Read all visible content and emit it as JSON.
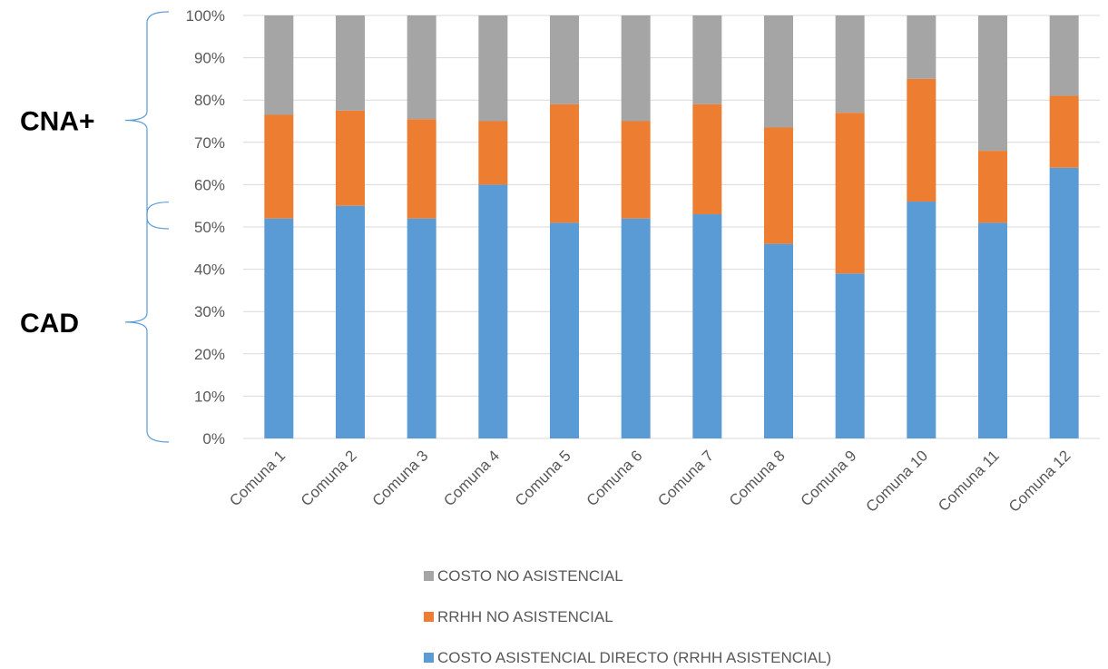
{
  "chart_data": {
    "type": "bar",
    "stacked": true,
    "percent": true,
    "categories": [
      "Comuna 1",
      "Comuna 2",
      "Comuna 3",
      "Comuna 4",
      "Comuna 5",
      "Comuna 6",
      "Comuna 7",
      "Comuna 8",
      "Comuna 9",
      "Comuna 10",
      "Comuna 11",
      "Comuna 12"
    ],
    "series": [
      {
        "name": "COSTO ASISTENCIAL DIRECTO (RRHH ASISTENCIAL)",
        "color": "#5B9BD5",
        "values": [
          52,
          55,
          52,
          60,
          51,
          52,
          53,
          46,
          39,
          56,
          51,
          64
        ]
      },
      {
        "name": "RRHH NO ASISTENCIAL",
        "color": "#ED7D31",
        "values": [
          24.5,
          22.5,
          23.5,
          15,
          28,
          23,
          26,
          27.5,
          38,
          29,
          17,
          17
        ]
      },
      {
        "name": "COSTO NO ASISTENCIAL",
        "color": "#A5A5A5",
        "values": [
          23.5,
          22.5,
          24.5,
          25,
          21,
          25,
          21,
          26.5,
          23,
          15,
          32,
          19
        ]
      }
    ],
    "yticks": [
      "0%",
      "10%",
      "20%",
      "30%",
      "40%",
      "50%",
      "60%",
      "70%",
      "80%",
      "90%",
      "100%"
    ],
    "ylim": [
      0,
      100
    ],
    "grid": true,
    "legend_position": "bottom",
    "legend_order": [
      "COSTO NO ASISTENCIAL",
      "RRHH NO ASISTENCIAL",
      "COSTO ASISTENCIAL DIRECTO (RRHH ASISTENCIAL)"
    ],
    "annotations": [
      {
        "text": "CNA+",
        "range": [
          50,
          100
        ]
      },
      {
        "text": "CAD",
        "range": [
          0,
          55
        ]
      }
    ]
  }
}
